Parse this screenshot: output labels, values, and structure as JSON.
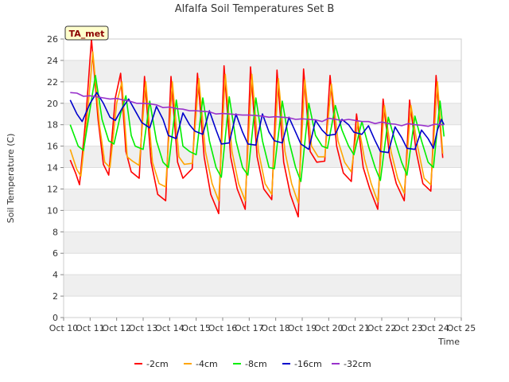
{
  "chart_data": {
    "type": "line",
    "title": "Alfalfa Soil Temperatures Set B",
    "xlabel": "Time",
    "ylabel": "Soil Temperature (C)",
    "badge": "TA_met",
    "xlim": [
      10,
      25
    ],
    "ylim": [
      0,
      26
    ],
    "x_ticks": [
      10,
      11,
      12,
      13,
      14,
      15,
      16,
      17,
      18,
      19,
      20,
      21,
      22,
      23,
      24,
      25
    ],
    "x_tick_labels": [
      "Oct 10",
      "Oct 11",
      "Oct 12",
      "Oct 13",
      "Oct 14",
      "Oct 15",
      "Oct 16",
      "Oct 17",
      "Oct 18",
      "Oct 19",
      "Oct 20",
      "Oct 21",
      "Oct 22",
      "Oct 23",
      "Oct 24",
      "Oct 25"
    ],
    "y_ticks": [
      0,
      2,
      4,
      6,
      8,
      10,
      12,
      14,
      16,
      18,
      20,
      22,
      24,
      26
    ],
    "grid": "horizontal alternating bands",
    "legend_position": "bottom",
    "series": [
      {
        "name": "-2cm",
        "color": "#ff0000",
        "x": [
          10.25,
          10.45,
          10.6,
          10.85,
          11.05,
          11.3,
          11.5,
          11.7,
          11.95,
          12.15,
          12.35,
          12.55,
          12.85,
          13.05,
          13.3,
          13.55,
          13.85,
          14.05,
          14.3,
          14.5,
          14.85,
          15.05,
          15.3,
          15.55,
          15.85,
          16.05,
          16.3,
          16.55,
          16.85,
          17.05,
          17.3,
          17.55,
          17.85,
          18.05,
          18.3,
          18.55,
          18.85,
          19.05,
          19.3,
          19.55,
          19.85,
          20.05,
          20.3,
          20.55,
          20.85,
          21.05,
          21.3,
          21.55,
          21.85,
          22.05,
          22.3,
          22.55,
          22.85,
          23.05,
          23.3,
          23.55,
          23.85,
          24.05,
          24.3
        ],
        "y": [
          14.7,
          13.5,
          12.4,
          19.0,
          26.0,
          18.5,
          14.3,
          13.3,
          20.5,
          22.8,
          15.5,
          13.6,
          13.0,
          22.5,
          14.5,
          11.5,
          10.9,
          22.5,
          14.5,
          13.0,
          13.9,
          22.8,
          15.0,
          11.5,
          9.7,
          23.5,
          15.0,
          12.0,
          10.1,
          23.4,
          15.0,
          12.0,
          11.0,
          23.1,
          14.5,
          11.5,
          9.4,
          23.2,
          15.5,
          14.5,
          14.6,
          22.6,
          16.0,
          13.5,
          12.7,
          19.0,
          14.0,
          12.0,
          10.1,
          20.4,
          15.0,
          12.5,
          10.9,
          20.3,
          15.5,
          12.5,
          11.8,
          22.6,
          14.9
        ]
      },
      {
        "name": "-4cm",
        "color": "#ffa500",
        "x": [
          10.25,
          10.5,
          10.65,
          10.9,
          11.1,
          11.35,
          11.55,
          11.75,
          12.0,
          12.2,
          12.4,
          12.6,
          12.85,
          13.1,
          13.35,
          13.6,
          13.85,
          14.1,
          14.35,
          14.55,
          14.85,
          15.1,
          15.35,
          15.6,
          15.85,
          16.1,
          16.35,
          16.6,
          16.85,
          17.1,
          17.35,
          17.6,
          17.85,
          18.1,
          18.35,
          18.6,
          18.85,
          19.1,
          19.35,
          19.6,
          19.85,
          20.1,
          20.35,
          20.6,
          20.85,
          21.1,
          21.35,
          21.6,
          21.85,
          22.1,
          22.35,
          22.6,
          22.85,
          23.1,
          23.35,
          23.6,
          23.85,
          24.1,
          24.3
        ],
        "y": [
          15.7,
          13.8,
          13.2,
          19.0,
          24.8,
          18.0,
          14.5,
          14.0,
          20.0,
          22.0,
          15.0,
          14.6,
          14.2,
          22.0,
          14.5,
          12.5,
          12.2,
          22.0,
          15.0,
          14.3,
          14.4,
          22.3,
          15.5,
          12.5,
          10.9,
          22.7,
          15.5,
          12.5,
          10.9,
          22.7,
          15.5,
          12.5,
          11.5,
          22.3,
          15.5,
          12.5,
          10.7,
          22.2,
          16.0,
          15.0,
          15.0,
          21.8,
          16.5,
          14.5,
          13.6,
          18.3,
          14.8,
          12.5,
          10.8,
          19.8,
          15.5,
          13.0,
          11.6,
          19.8,
          16.0,
          13.0,
          12.4,
          22.0,
          15.3
        ]
      },
      {
        "name": "-8cm",
        "color": "#00ee00",
        "x": [
          10.25,
          10.55,
          10.75,
          11.0,
          11.2,
          11.45,
          11.7,
          11.9,
          12.15,
          12.35,
          12.55,
          12.7,
          13.0,
          13.25,
          13.5,
          13.75,
          13.95,
          14.25,
          14.5,
          14.75,
          15.0,
          15.25,
          15.5,
          15.75,
          15.95,
          16.25,
          16.5,
          16.75,
          16.95,
          17.25,
          17.5,
          17.75,
          17.95,
          18.25,
          18.5,
          18.75,
          18.95,
          19.25,
          19.5,
          19.75,
          19.95,
          20.25,
          20.5,
          20.75,
          20.95,
          21.25,
          21.5,
          21.75,
          21.95,
          22.25,
          22.5,
          22.75,
          22.95,
          23.25,
          23.5,
          23.75,
          23.95,
          24.2,
          24.35
        ],
        "y": [
          18.0,
          16.0,
          15.6,
          19.5,
          22.6,
          18.5,
          16.5,
          16.2,
          19.0,
          20.7,
          17.0,
          16.0,
          15.7,
          20.2,
          16.5,
          14.5,
          14.0,
          20.3,
          16.0,
          15.5,
          15.2,
          20.5,
          16.5,
          14.0,
          13.1,
          20.6,
          16.5,
          14.0,
          13.3,
          20.5,
          16.5,
          14.0,
          13.9,
          20.2,
          16.5,
          14.0,
          12.7,
          20.0,
          17.0,
          16.0,
          15.8,
          19.8,
          17.5,
          16.0,
          15.2,
          18.3,
          16.0,
          14.0,
          12.8,
          18.7,
          16.5,
          14.5,
          13.3,
          18.8,
          16.5,
          14.5,
          14.0,
          20.2,
          16.9
        ]
      },
      {
        "name": "-16cm",
        "color": "#0000cc",
        "x": [
          10.25,
          10.5,
          10.7,
          11.0,
          11.25,
          11.5,
          11.75,
          11.95,
          12.2,
          12.45,
          12.7,
          12.95,
          13.25,
          13.5,
          13.75,
          13.95,
          14.25,
          14.5,
          14.75,
          14.95,
          15.25,
          15.5,
          15.75,
          15.95,
          16.25,
          16.5,
          16.75,
          16.95,
          17.25,
          17.5,
          17.75,
          17.95,
          18.25,
          18.5,
          18.75,
          18.95,
          19.25,
          19.5,
          19.75,
          19.95,
          20.25,
          20.5,
          20.75,
          20.95,
          21.25,
          21.5,
          21.75,
          21.95,
          22.25,
          22.5,
          22.75,
          22.95,
          23.25,
          23.5,
          23.75,
          23.95,
          24.1,
          24.25,
          24.35
        ],
        "y": [
          20.3,
          19.0,
          18.3,
          20.0,
          21.0,
          20.0,
          18.7,
          18.4,
          19.5,
          20.4,
          19.3,
          18.2,
          17.7,
          19.7,
          18.5,
          17.0,
          16.7,
          19.1,
          18.0,
          17.4,
          17.1,
          19.3,
          17.5,
          16.2,
          16.3,
          19.0,
          17.3,
          16.2,
          16.1,
          19.0,
          17.3,
          16.5,
          16.3,
          18.7,
          17.3,
          16.2,
          15.7,
          18.4,
          17.5,
          17.0,
          17.1,
          18.5,
          18.0,
          17.3,
          17.1,
          17.9,
          16.5,
          15.5,
          15.4,
          17.8,
          16.8,
          15.8,
          15.7,
          17.5,
          16.7,
          15.8,
          17.5,
          18.5,
          18.0
        ]
      },
      {
        "name": "-32cm",
        "color": "#9932cc",
        "x": [
          10.25,
          10.5,
          10.75,
          11.0,
          11.25,
          11.5,
          11.75,
          12.0,
          12.25,
          12.5,
          12.75,
          13.0,
          13.25,
          13.5,
          13.75,
          14.0,
          14.25,
          14.5,
          14.75,
          15.0,
          15.25,
          15.5,
          15.75,
          16.0,
          16.25,
          16.5,
          16.75,
          17.0,
          17.25,
          17.5,
          17.75,
          18.0,
          18.25,
          18.5,
          18.75,
          19.0,
          19.25,
          19.5,
          19.75,
          20.0,
          20.25,
          20.5,
          20.75,
          21.0,
          21.25,
          21.5,
          21.75,
          22.0,
          22.25,
          22.5,
          22.75,
          23.0,
          23.25,
          23.5,
          23.75,
          24.0,
          24.25,
          24.35
        ],
        "y": [
          21.0,
          20.95,
          20.65,
          20.7,
          20.6,
          20.5,
          20.4,
          20.45,
          20.3,
          20.2,
          20.0,
          20.0,
          19.95,
          19.85,
          19.6,
          19.65,
          19.5,
          19.45,
          19.3,
          19.3,
          19.25,
          19.2,
          19.0,
          19.05,
          19.0,
          18.95,
          18.9,
          18.9,
          18.85,
          18.8,
          18.7,
          18.75,
          18.7,
          18.65,
          18.5,
          18.55,
          18.5,
          18.45,
          18.3,
          18.6,
          18.5,
          18.4,
          18.5,
          18.4,
          18.3,
          18.3,
          18.1,
          18.25,
          18.1,
          18.05,
          17.9,
          18.1,
          18.0,
          17.95,
          17.85,
          18.05,
          18.0,
          18.0
        ]
      }
    ]
  }
}
